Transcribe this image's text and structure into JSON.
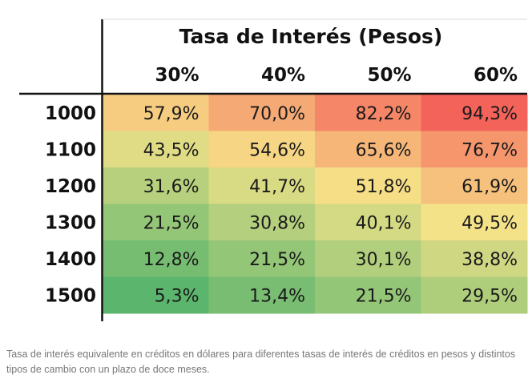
{
  "chart_data": {
    "type": "heatmap",
    "title": "Tasa de Interés (Pesos)",
    "columns": [
      "30%",
      "40%",
      "50%",
      "60%"
    ],
    "rows": [
      "1000",
      "1100",
      "1200",
      "1300",
      "1400",
      "1500"
    ],
    "values_label": [
      [
        "57,9%",
        "70,0%",
        "82,2%",
        "94,3%"
      ],
      [
        "43,5%",
        "54,6%",
        "65,6%",
        "76,7%"
      ],
      [
        "31,6%",
        "41,7%",
        "51,8%",
        "61,9%"
      ],
      [
        "21,5%",
        "30,8%",
        "40,1%",
        "49,5%"
      ],
      [
        "12,8%",
        "21,5%",
        "30,1%",
        "38,8%"
      ],
      [
        "5,3%",
        "13,4%",
        "21,5%",
        "29,5%"
      ]
    ],
    "values": [
      [
        57.9,
        70.0,
        82.2,
        94.3
      ],
      [
        43.5,
        54.6,
        65.6,
        76.7
      ],
      [
        31.6,
        41.7,
        51.8,
        61.9
      ],
      [
        21.5,
        30.8,
        40.1,
        49.5
      ],
      [
        12.8,
        21.5,
        30.1,
        38.8
      ],
      [
        5.3,
        13.4,
        21.5,
        29.5
      ]
    ],
    "color_scale": {
      "low": "#5cb56c",
      "mid": "#f6e389",
      "high": "#f4635a",
      "domain": [
        5.3,
        50,
        94.3
      ]
    },
    "grid": false,
    "legend": "none"
  },
  "caption": "Tasa de interés equivalente en créditos en dólares para diferentes tasas de interés de créditos en pesos y distintos tipos de cambio con un plazo de doce meses."
}
